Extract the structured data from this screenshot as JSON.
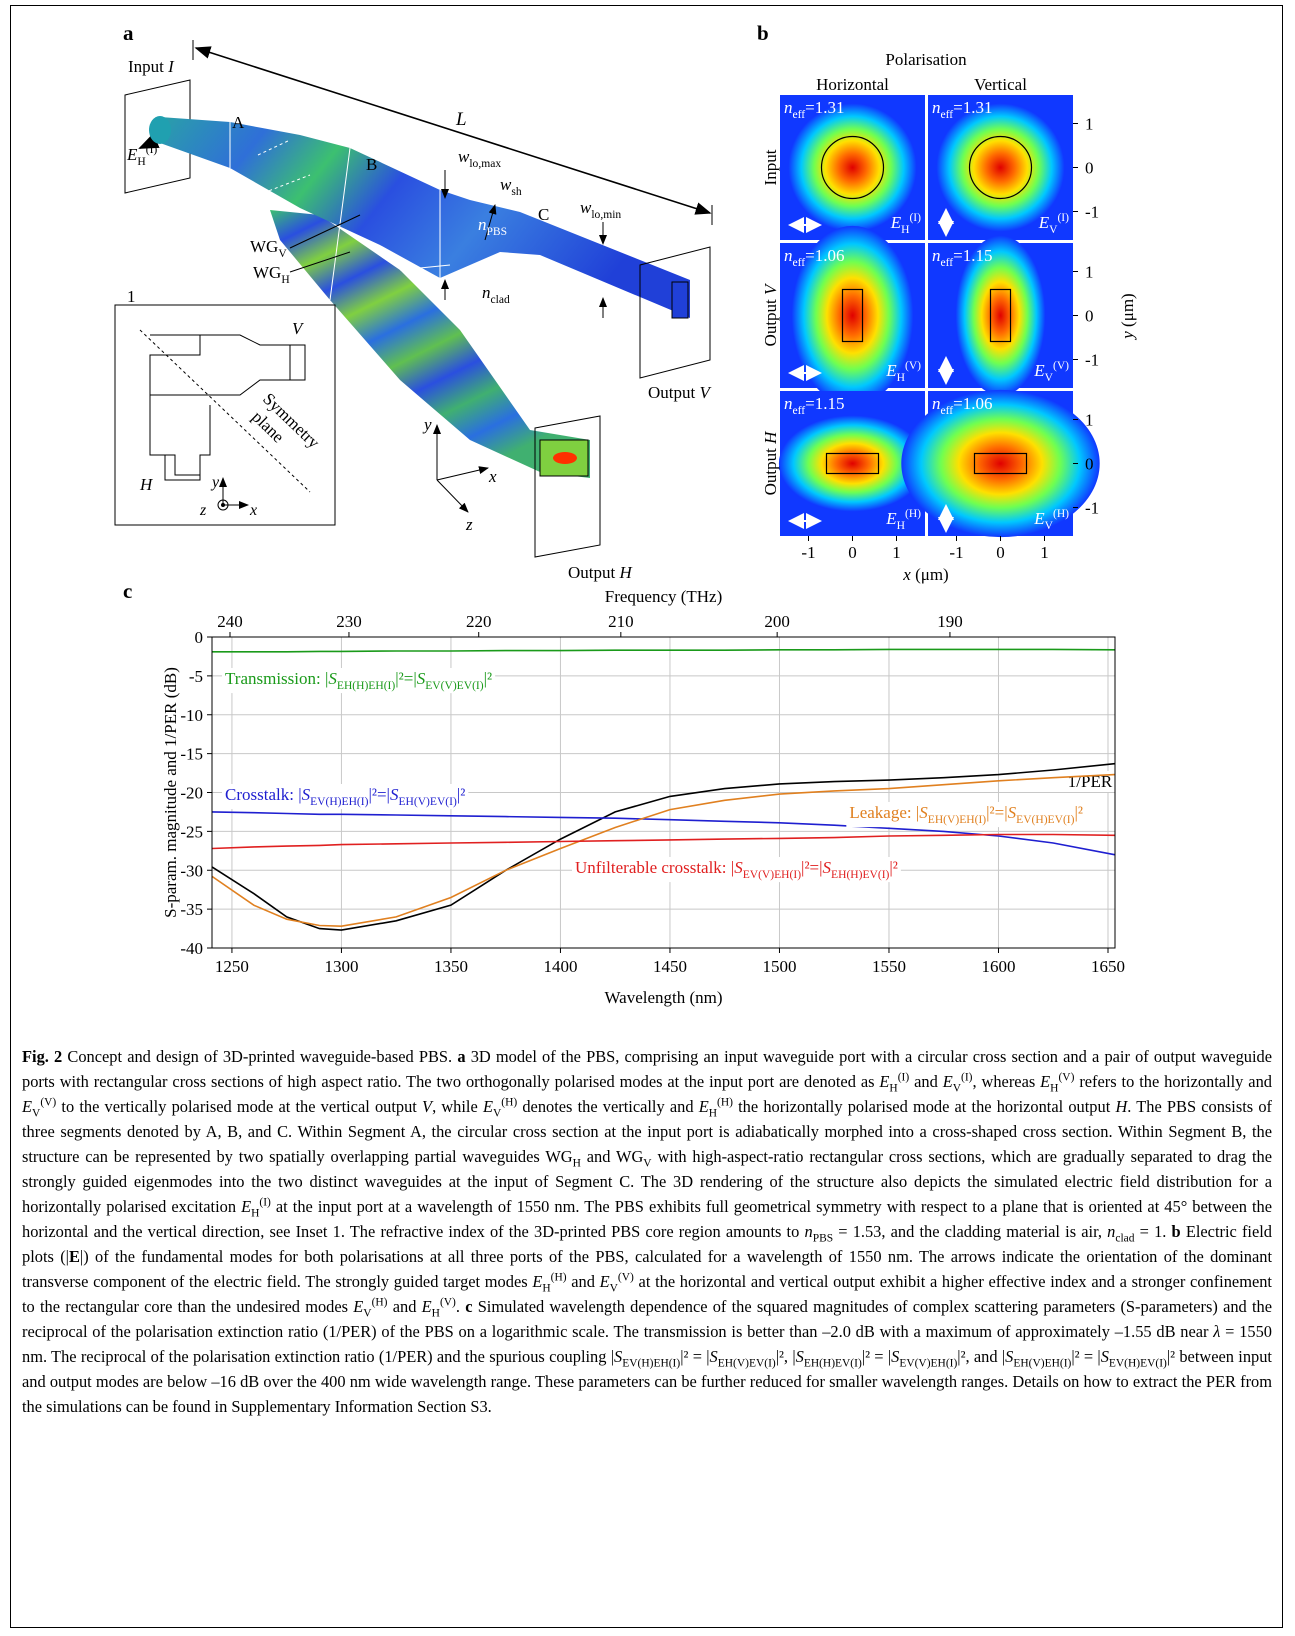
{
  "figure_a": {
    "panel": "a",
    "input": [
      "Input ",
      {
        "m": "I"
      }
    ],
    "input_field": {
      "m": "E",
      "sub": "H",
      "sup": "(I)"
    },
    "length": {
      "m": "L"
    },
    "segments": [
      "A",
      "B",
      "C"
    ],
    "w_lo_max": {
      "m": "w",
      "sub": "lo,max"
    },
    "w_sh": {
      "m": "w",
      "sub": "sh"
    },
    "w_lo_min": {
      "m": "w",
      "sub": "lo,min"
    },
    "wg_v": [
      {
        "t": "WG",
        "sub": "V"
      }
    ],
    "wg_h": [
      {
        "t": "WG",
        "sub": "H"
      }
    ],
    "n_pbs": {
      "m": "n",
      "sub": "PBS"
    },
    "n_clad": {
      "m": "n",
      "sub": "clad"
    },
    "output_v": [
      "Output ",
      {
        "m": "V"
      }
    ],
    "output_h": [
      "Output ",
      {
        "m": "H"
      }
    ],
    "axes": {
      "x": {
        "m": "x"
      },
      "y": {
        "m": "y"
      },
      "z": {
        "m": "z"
      }
    },
    "inset": {
      "label": "1",
      "v": {
        "m": "V"
      },
      "h": {
        "m": "H"
      },
      "symmetry": [
        "Symmetry",
        "plane"
      ],
      "x": {
        "m": "x"
      },
      "y": {
        "m": "y"
      },
      "z": {
        "m": "z"
      }
    }
  },
  "figure_b": {
    "panel": "b",
    "title": "Polarisation",
    "columns": [
      "Horizontal",
      "Vertical"
    ],
    "rows": [
      "Input",
      [
        "Output ",
        {
          "m": "V"
        }
      ],
      [
        "Output ",
        {
          "m": "H"
        }
      ]
    ],
    "plots": [
      [
        {
          "neff": [
            {
              "m": "n",
              "sub": "eff"
            },
            "=1.31"
          ],
          "field": {
            "m": "E",
            "sub": "H",
            "sup": "(I)"
          }
        },
        {
          "neff": [
            {
              "m": "n",
              "sub": "eff"
            },
            "=1.31"
          ],
          "field": {
            "m": "E",
            "sub": "V",
            "sup": "(I)"
          }
        }
      ],
      [
        {
          "neff": [
            {
              "m": "n",
              "sub": "eff"
            },
            "=1.06"
          ],
          "field": {
            "m": "E",
            "sub": "H",
            "sup": "(V)"
          }
        },
        {
          "neff": [
            {
              "m": "n",
              "sub": "eff"
            },
            "=1.15"
          ],
          "field": {
            "m": "E",
            "sub": "V",
            "sup": "(V)"
          }
        }
      ],
      [
        {
          "neff": [
            {
              "m": "n",
              "sub": "eff"
            },
            "=1.15"
          ],
          "field": {
            "m": "E",
            "sub": "H",
            "sup": "(H)"
          }
        },
        {
          "neff": [
            {
              "m": "n",
              "sub": "eff"
            },
            "=1.06"
          ],
          "field": {
            "m": "E",
            "sub": "V",
            "sup": "(H)"
          }
        }
      ]
    ],
    "xticks": [
      -1,
      0,
      1
    ],
    "yticks": [
      1,
      0,
      -1
    ],
    "xlabel": [
      {
        "m": "x"
      },
      " (μm)"
    ],
    "ylabel": [
      {
        "m": "y"
      },
      " (μm)"
    ]
  },
  "chart_data": {
    "type": "line",
    "panel": "c",
    "xlabel": "Wavelength (nm)",
    "ylabel": "S-param. magnitude and 1/PER (dB)",
    "x2label": "Frequency (THz)",
    "x": [
      1241,
      1260,
      1275,
      1290,
      1300,
      1325,
      1350,
      1375,
      1400,
      1425,
      1450,
      1475,
      1500,
      1525,
      1550,
      1575,
      1600,
      1625,
      1653
    ],
    "xlim": [
      1240.9,
      1653.2
    ],
    "xticks": [
      1250,
      1300,
      1350,
      1400,
      1450,
      1500,
      1550,
      1600,
      1650
    ],
    "x2lim": [
      241.59,
      181.34
    ],
    "x2ticks": [
      240,
      230,
      220,
      210,
      200,
      190
    ],
    "ylim": [
      -40,
      0
    ],
    "yticks": [
      0,
      -5,
      -10,
      -15,
      -20,
      -25,
      -30,
      -35,
      -40
    ],
    "grid": true,
    "series": [
      {
        "name": "Transmission:",
        "color": "#1a9a1a",
        "formula": [
          " |",
          {
            "m": "S",
            "sub": "EH(H)EH(I)"
          },
          "|²=|",
          {
            "m": "S",
            "sub": "EV(V)EV(I)"
          },
          "|²"
        ],
        "values": [
          -1.9,
          -1.9,
          -1.9,
          -1.85,
          -1.85,
          -1.8,
          -1.8,
          -1.75,
          -1.75,
          -1.7,
          -1.7,
          -1.7,
          -1.65,
          -1.65,
          -1.6,
          -1.6,
          -1.6,
          -1.6,
          -1.65
        ]
      },
      {
        "name": "1/PER",
        "color": "#000000",
        "values": [
          -29.6,
          -33,
          -36,
          -37.5,
          -37.7,
          -36.5,
          -34.5,
          -30,
          -26,
          -22.5,
          -20.5,
          -19.5,
          -18.9,
          -18.6,
          -18.4,
          -18.1,
          -17.7,
          -17.1,
          -16.3
        ]
      },
      {
        "name": "Crosstalk:",
        "color": "#1f1fd0",
        "formula": [
          " |",
          {
            "m": "S",
            "sub": "EV(H)EH(I)"
          },
          "|²=|",
          {
            "m": "S",
            "sub": "EH(V)EV(I)"
          },
          "|²"
        ],
        "values": [
          -22.5,
          -22.6,
          -22.7,
          -22.8,
          -22.8,
          -22.9,
          -23,
          -23.1,
          -23.2,
          -23.3,
          -23.5,
          -23.7,
          -23.9,
          -24.2,
          -24.6,
          -25,
          -25.6,
          -26.5,
          -28
        ]
      },
      {
        "name": "Leakage:",
        "color": "#e08020",
        "formula": [
          " |",
          {
            "m": "S",
            "sub": "EH(V)EH(I)"
          },
          "|²=|",
          {
            "m": "S",
            "sub": "EV(H)EV(I)"
          },
          "|²"
        ],
        "values": [
          -30.8,
          -34.5,
          -36.3,
          -37.1,
          -37.2,
          -36,
          -33.5,
          -30,
          -27.2,
          -24.5,
          -22.2,
          -21,
          -20.2,
          -19.8,
          -19.5,
          -19,
          -18.5,
          -18.1,
          -17.7
        ]
      },
      {
        "name": "Unfilterable crosstalk:",
        "color": "#e02020",
        "formula": [
          " |",
          {
            "m": "S",
            "sub": "EV(V)EH(I)"
          },
          "|²=|",
          {
            "m": "S",
            "sub": "EH(H)EV(I)"
          },
          "|²"
        ],
        "values": [
          -27.2,
          -27,
          -26.9,
          -26.8,
          -26.7,
          -26.6,
          -26.5,
          -26.4,
          -26.3,
          -26.2,
          -26.1,
          -26,
          -25.9,
          -25.8,
          -25.6,
          -25.5,
          -25.4,
          -25.4,
          -25.5
        ]
      }
    ]
  },
  "caption": [
    {
      "b": "Fig. 2"
    },
    " Concept and design of 3D-printed waveguide-based PBS. ",
    {
      "b": "a"
    },
    " 3D model of the PBS, comprising an input waveguide port with a circular cross section and a pair of output waveguide ports with rectangular cross sections of high aspect ratio. The two orthogonally polarised modes at the input port are denoted as ",
    {
      "m": "E",
      "sub": "H",
      "sup": "(I)"
    },
    " and ",
    {
      "m": "E",
      "sub": "V",
      "sup": "(I)"
    },
    ", whereas ",
    {
      "m": "E",
      "sub": "H",
      "sup": "(V)"
    },
    " refers to the horizontally and ",
    {
      "m": "E",
      "sub": "V",
      "sup": "(V)"
    },
    " to the vertically polarised mode at the vertical output ",
    {
      "m": "V"
    },
    ", while ",
    {
      "m": "E",
      "sub": "V",
      "sup": "(H)"
    },
    " denotes the vertically and ",
    {
      "m": "E",
      "sub": "H",
      "sup": "(H)"
    },
    " the horizontally polarised mode at the horizontal output ",
    {
      "m": "H"
    },
    ". The PBS consists of three segments denoted by A, B, and C. Within Segment A, the circular cross section at the input port is adiabatically morphed into a cross-shaped cross section. Within Segment B, the structure can be represented by two spatially overlapping partial waveguides ",
    {
      "t": "WG",
      "sub": "H"
    },
    " and ",
    {
      "t": "WG",
      "sub": "V"
    },
    " with high-aspect-ratio rectangular cross sections, which are gradually separated to drag the strongly guided eigenmodes into the two distinct waveguides at the input of Segment C. The 3D rendering of the structure also depicts the simulated electric field distribution for a horizontally polarised excitation ",
    {
      "m": "E",
      "sub": "H",
      "sup": "(I)"
    },
    " at the input port at a wavelength of 1550 nm. The PBS exhibits full geometrical symmetry with respect to a plane that is oriented at 45° between the horizontal and the vertical direction, see Inset 1. The refractive index of the 3D-printed PBS core region amounts to ",
    {
      "m": "n",
      "sub": "PBS"
    },
    " = 1.53, and the cladding material is air, ",
    {
      "m": "n",
      "sub": "clad"
    },
    " = 1. ",
    {
      "b": "b"
    },
    " Electric field plots (|",
    {
      "b": "E"
    },
    "|) of the fundamental modes for both polarisations at all three ports of the PBS, calculated for a wavelength of 1550 nm. The arrows indicate the orientation of the dominant transverse component of the electric field. The strongly guided target modes ",
    {
      "m": "E",
      "sub": "H",
      "sup": "(H)"
    },
    " and ",
    {
      "m": "E",
      "sub": "V",
      "sup": "(V)"
    },
    " at the horizontal and vertical output exhibit a higher effective index and a stronger confinement to the rectangular core than the undesired modes ",
    {
      "m": "E",
      "sub": "V",
      "sup": "(H)"
    },
    " and ",
    {
      "m": "E",
      "sub": "H",
      "sup": "(V)"
    },
    ". ",
    {
      "b": "c"
    },
    " Simulated wavelength dependence of the squared magnitudes of complex scattering parameters (S-parameters) and the reciprocal of the polarisation extinction ratio (1/PER) of the PBS on a logarithmic scale. The transmission is better than –2.0 dB with a maximum of approximately –1.55 dB near ",
    {
      "m": "λ"
    },
    " = 1550 nm. The reciprocal of the polarisation extinction ratio (1/PER) and the spurious coupling |",
    {
      "m": "S",
      "sub": "EV(H)EH(I)"
    },
    "|² = |",
    {
      "m": "S",
      "sub": "EH(V)EV(I)"
    },
    "|², |",
    {
      "m": "S",
      "sub": "EH(H)EV(I)"
    },
    "|² = |",
    {
      "m": "S",
      "sub": "EV(V)EH(I)"
    },
    "|², and |",
    {
      "m": "S",
      "sub": "EH(V)EH(I)"
    },
    "|² = |",
    {
      "m": "S",
      "sub": "EV(H)EV(I)"
    },
    "|² between input and output modes are below –16 dB over the 400 nm wide wavelength range. These parameters can be further reduced for smaller wavelength ranges. Details on how to extract the PER from the simulations can be found in Supplementary Information Section S3."
  ]
}
